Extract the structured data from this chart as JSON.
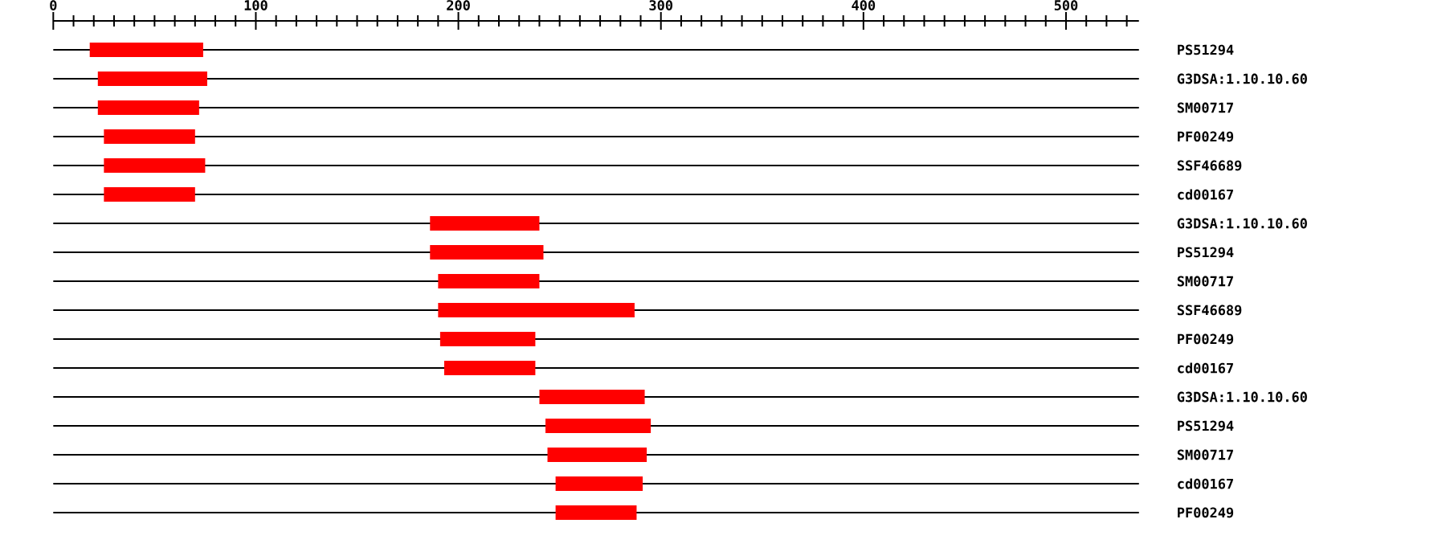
{
  "chart_data": {
    "type": "bar",
    "orientation": "horizontal",
    "color": "#ff0000",
    "grid": "y",
    "categories": [
      "PS51294",
      "G3DSA:1.10.10.60",
      "SM00717",
      "PF00249",
      "SSF46689",
      "cd00167",
      "G3DSA:1.10.10.60",
      "PS51294",
      "SM00717",
      "SSF46689",
      "PF00249",
      "cd00167",
      "G3DSA:1.10.10.60",
      "PS51294",
      "SM00717",
      "cd00167",
      "PF00249"
    ],
    "base": [
      18,
      22,
      22,
      25,
      25,
      25,
      186,
      186,
      190,
      190,
      191,
      193,
      240,
      243,
      244,
      248,
      248
    ],
    "values": [
      56,
      54,
      50,
      45,
      50,
      45,
      54,
      56,
      50,
      97,
      47,
      45,
      52,
      52,
      49,
      43,
      40
    ],
    "xlim": [
      0,
      536
    ],
    "xticks": [
      0,
      {
        "value": 10,
        "label": null
      },
      {
        "value": 20,
        "label": null
      },
      {
        "value": 30,
        "label": null
      },
      {
        "value": 40,
        "label": null
      },
      {
        "value": 50,
        "label": null
      },
      {
        "value": 60,
        "label": null
      },
      {
        "value": 70,
        "label": null
      },
      {
        "value": 80,
        "label": null
      },
      {
        "value": 90,
        "label": null
      },
      100,
      {
        "value": 110,
        "label": null
      },
      {
        "value": 120,
        "label": null
      },
      {
        "value": 130,
        "label": null
      },
      {
        "value": 140,
        "label": null
      },
      {
        "value": 150,
        "label": null
      },
      {
        "value": 160,
        "label": null
      },
      {
        "value": 170,
        "label": null
      },
      {
        "value": 180,
        "label": null
      },
      {
        "value": 190,
        "label": null
      },
      200,
      {
        "value": 210,
        "label": null
      },
      {
        "value": 220,
        "label": null
      },
      {
        "value": 230,
        "label": null
      },
      {
        "value": 240,
        "label": null
      },
      {
        "value": 250,
        "label": null
      },
      {
        "value": 260,
        "label": null
      },
      {
        "value": 270,
        "label": null
      },
      {
        "value": 280,
        "label": null
      },
      {
        "value": 290,
        "label": null
      },
      300,
      {
        "value": 310,
        "label": null
      },
      {
        "value": 320,
        "label": null
      },
      {
        "value": 330,
        "label": null
      },
      {
        "value": 340,
        "label": null
      },
      {
        "value": 350,
        "label": null
      },
      {
        "value": 360,
        "label": null
      },
      {
        "value": 370,
        "label": null
      },
      {
        "value": 380,
        "label": null
      },
      {
        "value": 390,
        "label": null
      },
      400,
      {
        "value": 410,
        "label": null
      },
      {
        "value": 420,
        "label": null
      },
      {
        "value": 430,
        "label": null
      },
      {
        "value": 440,
        "label": null
      },
      {
        "value": 450,
        "label": null
      },
      {
        "value": 460,
        "label": null
      },
      {
        "value": 470,
        "label": null
      },
      {
        "value": 480,
        "label": null
      },
      {
        "value": 490,
        "label": null
      },
      500,
      {
        "value": 510,
        "label": null
      },
      {
        "value": 520,
        "label": null
      },
      {
        "value": 530,
        "label": null
      }
    ]
  }
}
